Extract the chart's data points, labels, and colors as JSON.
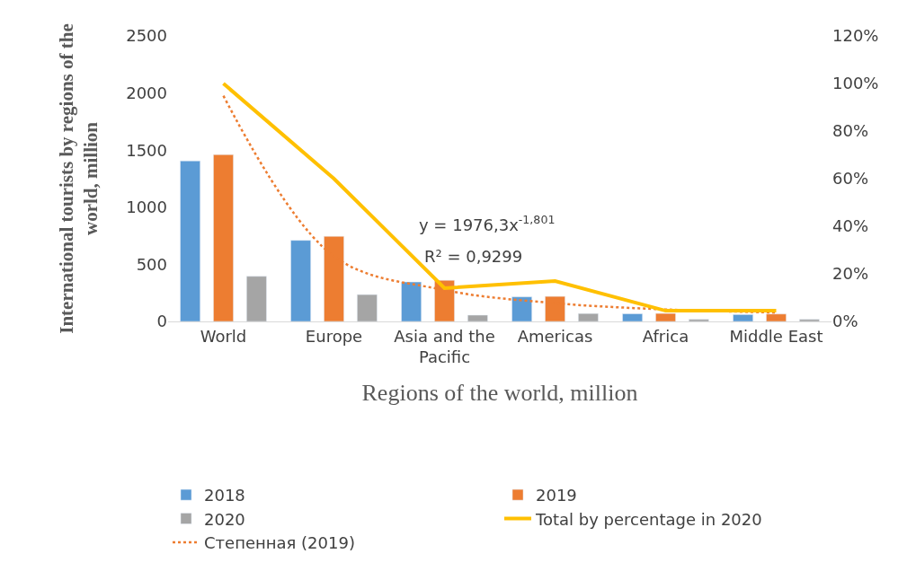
{
  "chart_data": {
    "type": "bar",
    "categories": [
      "World",
      "Europe",
      "Asia and the Pacific",
      "Americas",
      "Africa",
      "Middle East"
    ],
    "xlabel": "Regions of the world, million",
    "ylabel": "International tourists by regions of the world, million",
    "series": [
      {
        "name": "2018",
        "color": "#5b9bd5",
        "values": [
          1405,
          710,
          345,
          215,
          67,
          60
        ]
      },
      {
        "name": "2019",
        "color": "#ed7d31",
        "values": [
          1460,
          745,
          360,
          219,
          70,
          65
        ]
      },
      {
        "name": "2020",
        "color": "#a5a5a5",
        "values": [
          395,
          235,
          55,
          69,
          18,
          18
        ]
      },
      {
        "name": "Total by percentage in 2020",
        "type": "line",
        "axis": "y2",
        "color": "#ffc000",
        "values": [
          100,
          60,
          14,
          17,
          4.5,
          4.5
        ]
      },
      {
        "name": "Степенная (2019)",
        "type": "line",
        "line_style": "dotted",
        "color": "#ed7d31",
        "values": [
          1976,
          570,
          275,
          160,
          105,
          78
        ]
      }
    ],
    "annotations": [
      "y = 1976,3x$^{-1,801}$",
      "R² = 0,9299"
    ],
    "ylim": [
      0,
      2500
    ],
    "yticks": [
      0,
      500,
      1000,
      1500,
      2000,
      2500
    ],
    "y2lim": [
      0,
      120
    ],
    "y2ticks": [
      {
        "value": 0,
        "label": "0%"
      },
      {
        "value": 20,
        "label": "20%"
      },
      {
        "value": 40,
        "label": "40%"
      },
      {
        "value": 60,
        "label": "60%"
      },
      {
        "value": 80,
        "label": "80%"
      },
      {
        "value": 100,
        "label": "100%"
      },
      {
        "value": 120,
        "label": "120%"
      }
    ],
    "legend": "bottom",
    "marker": "none"
  }
}
